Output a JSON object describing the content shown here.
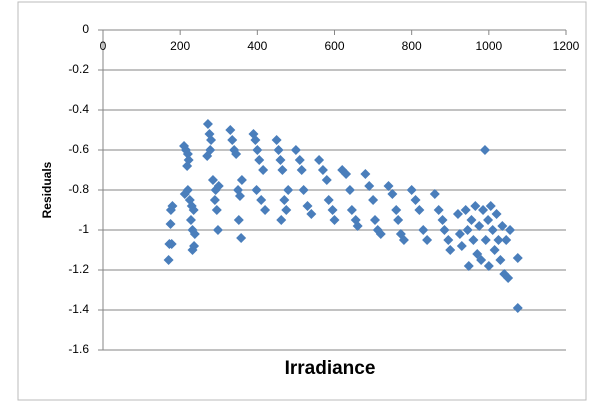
{
  "chart_data": {
    "type": "scatter",
    "x_label": "Irradiance",
    "y_label": "Residuals",
    "xlim": [
      0,
      1200
    ],
    "xticks": [
      0,
      200,
      400,
      600,
      800,
      1000,
      1200
    ],
    "ylim": [
      -1.6,
      0
    ],
    "yticks": [
      0,
      -0.2,
      -0.4,
      -0.6,
      -0.8,
      -1,
      -1.2,
      -1.4,
      -1.6
    ],
    "grid": true,
    "series": [
      {
        "color": "#4a7ebb",
        "x": [
          170,
          172,
          178,
          175,
          176,
          180,
          210,
          215,
          220,
          222,
          218,
          212,
          225,
          230,
          235,
          228,
          232,
          238,
          236,
          232,
          220,
          272,
          276,
          280,
          278,
          270,
          285,
          292,
          290,
          295,
          298,
          300,
          330,
          335,
          340,
          345,
          350,
          355,
          352,
          358,
          360,
          390,
          395,
          400,
          405,
          398,
          410,
          420,
          415,
          450,
          455,
          460,
          465,
          470,
          475,
          462,
          480,
          500,
          510,
          515,
          520,
          530,
          540,
          560,
          570,
          580,
          585,
          595,
          600,
          620,
          630,
          640,
          645,
          655,
          660,
          680,
          690,
          700,
          705,
          712,
          720,
          740,
          750,
          760,
          765,
          772,
          780,
          800,
          810,
          820,
          830,
          840,
          860,
          870,
          880,
          885,
          895,
          900,
          920,
          925,
          930,
          940,
          945,
          948,
          955,
          960,
          965,
          970,
          975,
          980,
          985,
          990,
          992,
          998,
          1000,
          1005,
          1010,
          1015,
          1020,
          1025,
          1030,
          1035,
          1040,
          1045,
          1050,
          1055,
          1075,
          1075
        ],
        "values": [
          -1.15,
          -1.07,
          -1.07,
          -0.97,
          -0.9,
          -0.88,
          -0.58,
          -0.6,
          -0.62,
          -0.65,
          -0.68,
          -0.82,
          -0.85,
          -0.88,
          -0.9,
          -0.95,
          -1.0,
          -1.02,
          -1.08,
          -1.1,
          -0.8,
          -0.47,
          -0.52,
          -0.55,
          -0.6,
          -0.63,
          -0.75,
          -0.8,
          -0.85,
          -0.9,
          -1.0,
          -0.78,
          -0.5,
          -0.55,
          -0.6,
          -0.62,
          -0.8,
          -0.83,
          -0.95,
          -1.04,
          -0.75,
          -0.52,
          -0.55,
          -0.6,
          -0.65,
          -0.8,
          -0.85,
          -0.9,
          -0.7,
          -0.55,
          -0.6,
          -0.65,
          -0.7,
          -0.85,
          -0.9,
          -0.95,
          -0.8,
          -0.6,
          -0.65,
          -0.7,
          -0.8,
          -0.88,
          -0.92,
          -0.65,
          -0.7,
          -0.75,
          -0.85,
          -0.9,
          -0.95,
          -0.7,
          -0.72,
          -0.8,
          -0.9,
          -0.95,
          -0.98,
          -0.72,
          -0.78,
          -0.85,
          -0.95,
          -1.0,
          -1.02,
          -0.78,
          -0.82,
          -0.9,
          -0.95,
          -1.02,
          -1.05,
          -0.8,
          -0.85,
          -0.9,
          -1.0,
          -1.05,
          -0.82,
          -0.9,
          -0.95,
          -1.0,
          -1.05,
          -1.1,
          -0.92,
          -1.02,
          -1.08,
          -0.9,
          -1.0,
          -1.18,
          -0.95,
          -1.05,
          -0.88,
          -1.12,
          -0.98,
          -1.15,
          -0.9,
          -0.6,
          -1.05,
          -0.95,
          -1.18,
          -0.88,
          -1.0,
          -1.1,
          -0.92,
          -1.05,
          -1.15,
          -0.98,
          -1.22,
          -1.05,
          -1.24,
          -1.0,
          -1.14,
          -1.39
        ]
      }
    ]
  }
}
